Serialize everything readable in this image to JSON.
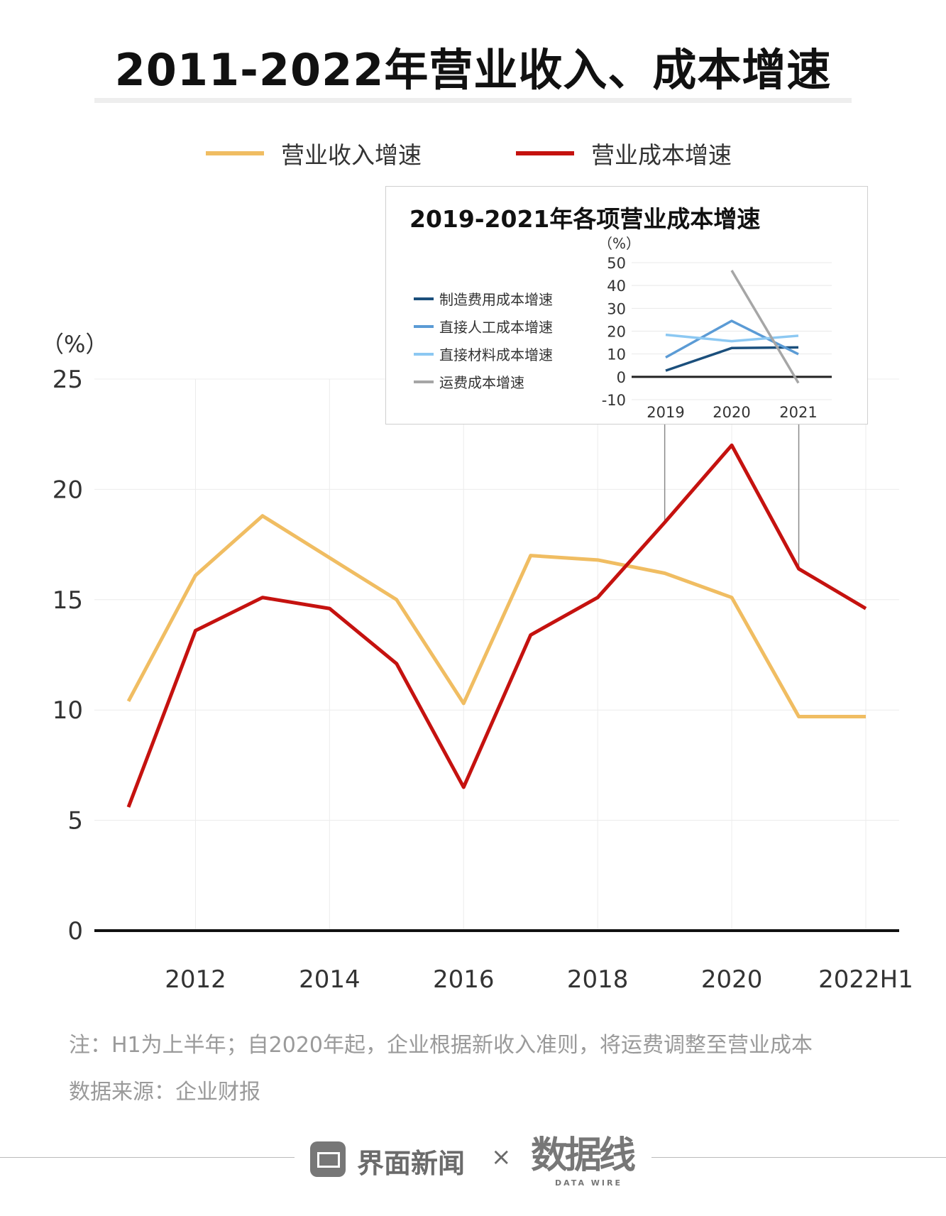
{
  "title": "2011-2022年营业收入、成本增速",
  "legend": [
    {
      "name": "营业收入增速",
      "color": "#f0bd62"
    },
    {
      "name": "营业成本增速",
      "color": "#c5120f"
    }
  ],
  "chart_data": [
    {
      "type": "line",
      "title": "2011-2022年营业收入、成本增速",
      "ylabel": "（%）",
      "xlabel": "",
      "categories": [
        "2011",
        "2012",
        "2013",
        "2014",
        "2015",
        "2016",
        "2017",
        "2018",
        "2019",
        "2020",
        "2021",
        "2022H1"
      ],
      "x_tick_labels": [
        "2012",
        "2014",
        "2016",
        "2018",
        "2020",
        "2022H1"
      ],
      "y_tick_labels": [
        "0",
        "5",
        "10",
        "15",
        "20",
        "25"
      ],
      "ylim": [
        0,
        25
      ],
      "grid": true,
      "legend_position": "top",
      "series": [
        {
          "name": "营业收入增速",
          "color": "#f0bd62",
          "values": [
            10.4,
            16.1,
            18.8,
            16.9,
            15.0,
            10.3,
            17.0,
            16.8,
            16.2,
            15.1,
            9.7,
            9.7
          ]
        },
        {
          "name": "营业成本增速",
          "color": "#c5120f",
          "values": [
            5.6,
            13.6,
            15.1,
            14.6,
            12.1,
            6.5,
            13.4,
            15.1,
            18.5,
            22.0,
            16.4,
            14.6
          ]
        }
      ]
    },
    {
      "type": "line",
      "title": "2019-2021年各项营业成本增速",
      "ylabel": "（%）",
      "categories": [
        "2019",
        "2020",
        "2021"
      ],
      "y_tick_labels": [
        "50",
        "40",
        "30",
        "20",
        "10",
        "0",
        "-10"
      ],
      "ylim": [
        -10,
        50
      ],
      "grid": true,
      "legend_position": "left",
      "series": [
        {
          "name": "制造费用成本增速",
          "color": "#1b4f7c",
          "values": [
            2.7,
            12.6,
            12.9
          ]
        },
        {
          "name": "直接人工成本增速",
          "color": "#5b9bd5",
          "values": [
            8.5,
            24.5,
            9.9
          ]
        },
        {
          "name": "直接材料成本增速",
          "color": "#8cc8f2",
          "values": [
            18.4,
            15.6,
            18.0
          ]
        },
        {
          "name": "运费成本增速",
          "color": "#a6a6a6",
          "values": [
            null,
            46.6,
            -2.7
          ]
        }
      ]
    }
  ],
  "note": "注：H1为上半年；自2020年起，企业根据新收入准则，将运费调整至营业成本",
  "source": "数据来源：企业财报",
  "footer": {
    "brand1": "界面新闻",
    "times": "×",
    "brand2": "数据线",
    "brand2_sub": "DATA WIRE"
  }
}
